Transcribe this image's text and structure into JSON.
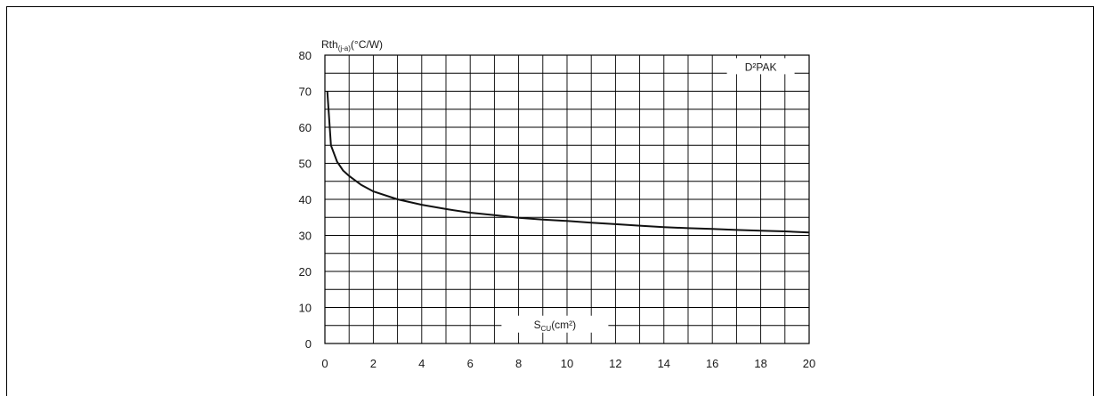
{
  "chart_data": {
    "type": "line",
    "ylabel_main": "Rth",
    "ylabel_sub": "(j-a)",
    "ylabel_unit": "(°C/W)",
    "xlabel_main": "S",
    "xlabel_sub": "CU",
    "xlabel_unit": "(cm²)",
    "legend": "D²PAK",
    "xlim": [
      0,
      20
    ],
    "ylim": [
      0,
      80
    ],
    "xticks": [
      0,
      2,
      4,
      6,
      8,
      10,
      12,
      14,
      16,
      18,
      20
    ],
    "yticks": [
      0,
      10,
      20,
      30,
      40,
      50,
      60,
      70,
      80
    ],
    "grid": true,
    "series": [
      {
        "x": [
          0.1,
          0.25,
          0.5,
          0.75,
          1,
          1.5,
          2,
          3,
          4,
          5,
          6,
          7,
          8,
          9,
          10,
          11,
          12,
          13,
          14,
          15,
          16,
          17,
          18,
          19,
          20
        ],
        "y": [
          70,
          55,
          50.5,
          48,
          46.5,
          44,
          42.2,
          40,
          38.5,
          37.3,
          36.3,
          35.6,
          34.9,
          34.4,
          34,
          33.5,
          33.1,
          32.7,
          32.3,
          32,
          31.8,
          31.5,
          31.3,
          31.1,
          30.8
        ]
      }
    ]
  }
}
